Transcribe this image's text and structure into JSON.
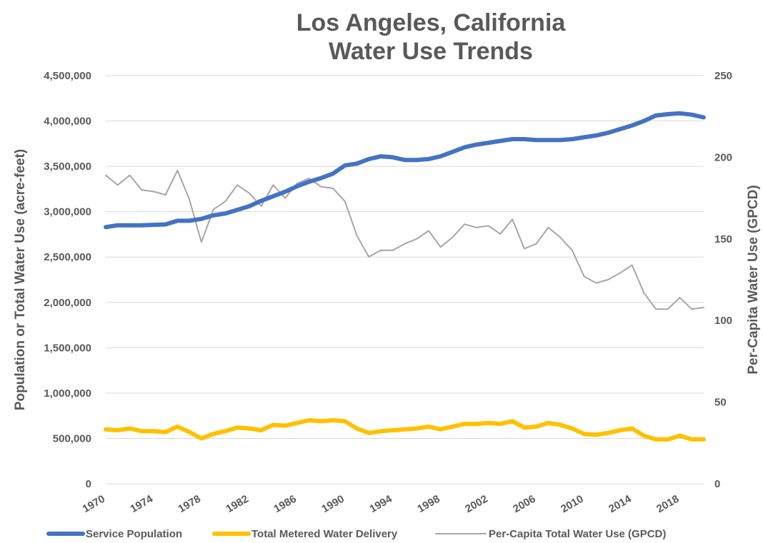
{
  "chart_data": {
    "type": "line",
    "title": [
      "Los Angeles, California",
      "Water Use Trends"
    ],
    "ylabel": "Population or Total Water Use (acre-feet)",
    "y2label": "Per-Capita Water Use (GPCD)",
    "ylim": [
      0,
      4500000
    ],
    "y2lim": [
      0,
      250
    ],
    "yticks": [
      0,
      500000,
      1000000,
      1500000,
      2000000,
      2500000,
      3000000,
      3500000,
      4000000,
      4500000
    ],
    "ytick_labels": [
      "0",
      "500,000",
      "1,000,000",
      "1,500,000",
      "2,000,000",
      "2,500,000",
      "3,000,000",
      "3,500,000",
      "4,000,000",
      "4,500,000"
    ],
    "y2ticks": [
      0,
      50,
      100,
      150,
      200,
      250
    ],
    "y2tick_labels": [
      "0",
      "50",
      "100",
      "150",
      "200",
      "250"
    ],
    "xlim": [
      1970,
      2020
    ],
    "xticks": [
      1970,
      1974,
      1978,
      1982,
      1986,
      1990,
      1994,
      1998,
      2002,
      2006,
      2010,
      2014,
      2018
    ],
    "xtick_labels": [
      "1970",
      "1974",
      "1978",
      "1982",
      "1986",
      "1990",
      "1994",
      "1998",
      "2002",
      "2006",
      "2010",
      "2014",
      "2018"
    ],
    "x": [
      1970,
      1971,
      1972,
      1973,
      1974,
      1975,
      1976,
      1977,
      1978,
      1979,
      1980,
      1981,
      1982,
      1983,
      1984,
      1985,
      1986,
      1987,
      1988,
      1989,
      1990,
      1991,
      1992,
      1993,
      1994,
      1995,
      1996,
      1997,
      1998,
      1999,
      2000,
      2001,
      2002,
      2003,
      2004,
      2005,
      2006,
      2007,
      2008,
      2009,
      2010,
      2011,
      2012,
      2013,
      2014,
      2015,
      2016,
      2017,
      2018,
      2019,
      2020
    ],
    "series": [
      {
        "name": "Service Population",
        "axis": "left",
        "color": "#4472C4",
        "values": [
          2830000,
          2850000,
          2850000,
          2850000,
          2855000,
          2860000,
          2900000,
          2900000,
          2920000,
          2960000,
          2980000,
          3020000,
          3060000,
          3120000,
          3170000,
          3220000,
          3280000,
          3330000,
          3370000,
          3420000,
          3510000,
          3530000,
          3580000,
          3610000,
          3600000,
          3570000,
          3570000,
          3580000,
          3610000,
          3660000,
          3710000,
          3740000,
          3760000,
          3780000,
          3800000,
          3800000,
          3790000,
          3790000,
          3790000,
          3800000,
          3820000,
          3840000,
          3870000,
          3910000,
          3950000,
          4000000,
          4060000,
          4075000,
          4085000,
          4070000,
          4040000
        ]
      },
      {
        "name": "Total Metered Water Delivery",
        "axis": "left",
        "color": "#FFC000",
        "values": [
          600000,
          590000,
          610000,
          580000,
          580000,
          570000,
          630000,
          570000,
          500000,
          550000,
          580000,
          620000,
          610000,
          590000,
          650000,
          640000,
          670000,
          700000,
          690000,
          700000,
          690000,
          610000,
          560000,
          580000,
          590000,
          600000,
          610000,
          630000,
          600000,
          630000,
          660000,
          660000,
          670000,
          660000,
          690000,
          620000,
          630000,
          670000,
          650000,
          610000,
          550000,
          540000,
          560000,
          590000,
          610000,
          530000,
          490000,
          490000,
          530000,
          490000,
          490000
        ]
      },
      {
        "name": "Per-Capita Total Water Use (GPCD)",
        "axis": "right",
        "color": "#A6A6A6",
        "values": [
          189,
          183,
          189,
          180,
          179,
          177,
          192,
          174,
          148,
          168,
          173,
          183,
          178,
          170,
          183,
          175,
          184,
          187,
          182,
          181,
          173,
          152,
          139,
          143,
          143,
          147,
          150,
          155,
          145,
          151,
          159,
          157,
          158,
          153,
          162,
          144,
          147,
          157,
          151,
          143,
          127,
          123,
          125,
          129,
          134,
          117,
          107,
          107,
          114,
          107,
          108
        ]
      }
    ],
    "legend_position": "bottom"
  }
}
